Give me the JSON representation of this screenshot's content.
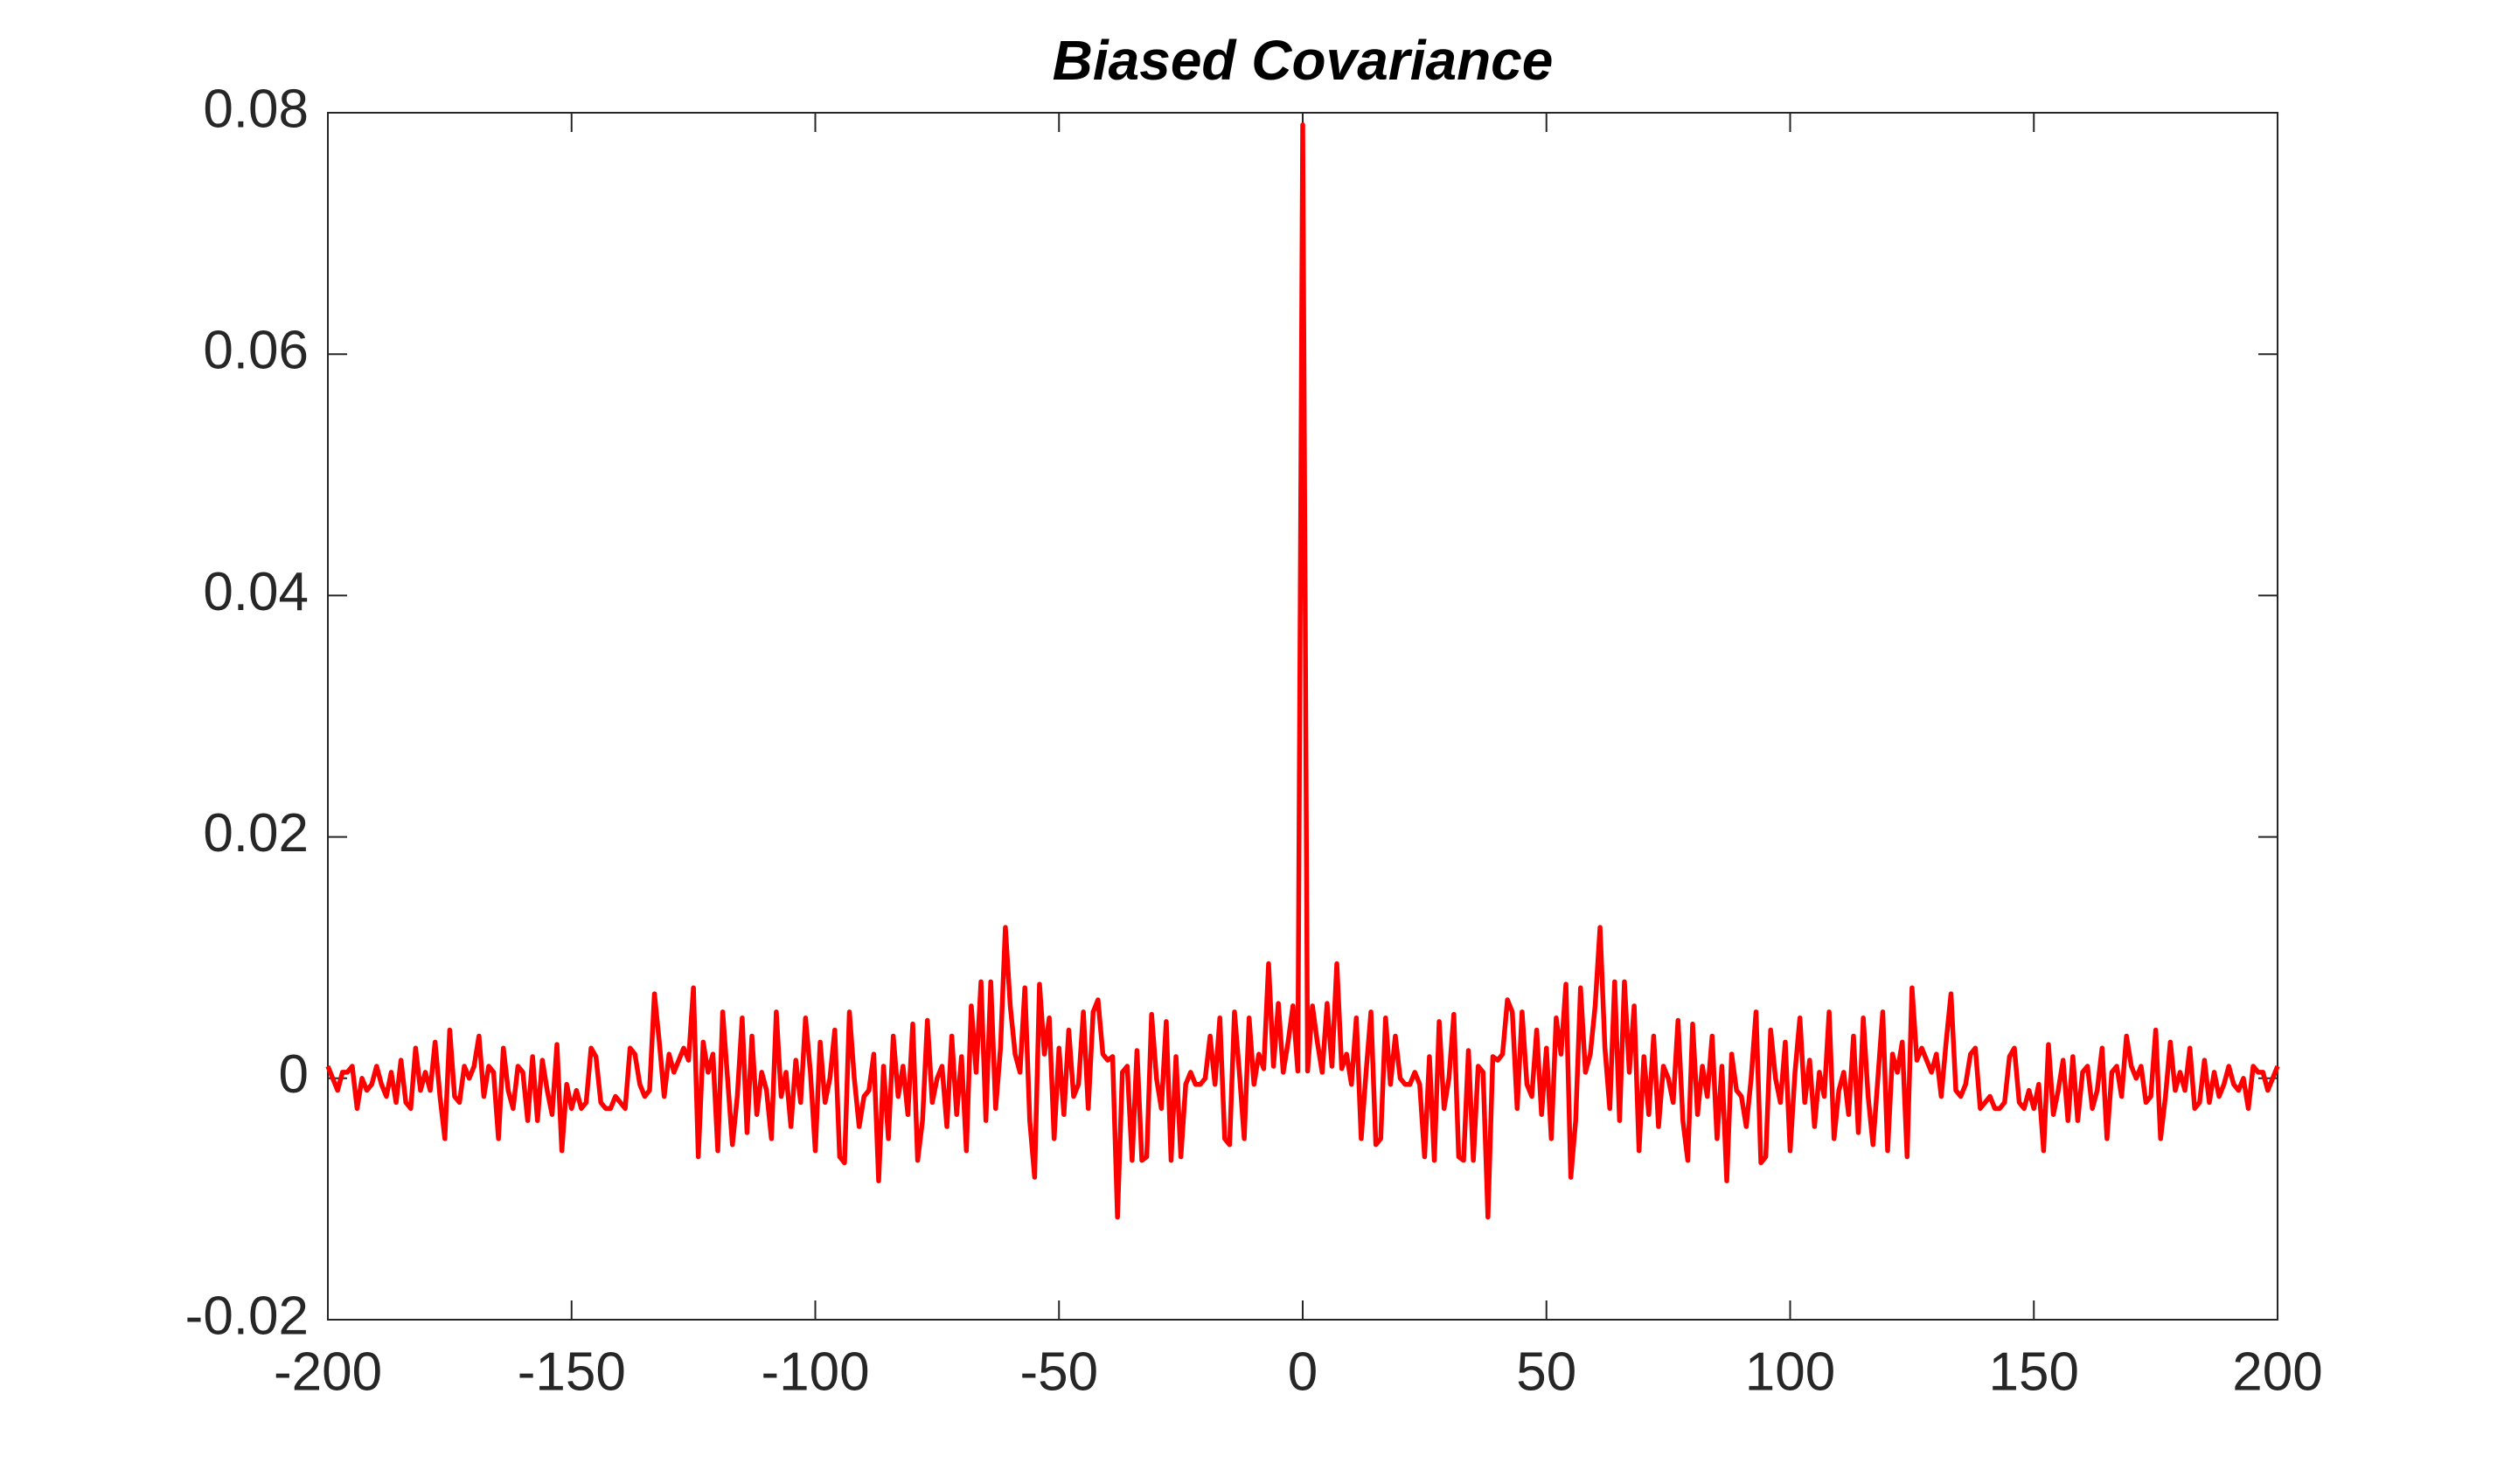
{
  "chart_data": {
    "type": "line",
    "title": "Biased Covariance",
    "x": [
      -200,
      -199,
      -198,
      -197,
      -196,
      -195,
      -194,
      -193,
      -192,
      -191,
      -190,
      -189,
      -188,
      -187,
      -186,
      -185,
      -184,
      -183,
      -182,
      -181,
      -180,
      -179,
      -178,
      -177,
      -176,
      -175,
      -174,
      -173,
      -172,
      -171,
      -170,
      -169,
      -168,
      -167,
      -166,
      -165,
      -164,
      -163,
      -162,
      -161,
      -160,
      -159,
      -158,
      -157,
      -156,
      -155,
      -154,
      -153,
      -152,
      -151,
      -150,
      -149,
      -148,
      -147,
      -146,
      -145,
      -144,
      -143,
      -142,
      -141,
      -140,
      -139,
      -138,
      -137,
      -136,
      -135,
      -134,
      -133,
      -132,
      -131,
      -130,
      -129,
      -128,
      -127,
      -126,
      -125,
      -124,
      -123,
      -122,
      -121,
      -120,
      -119,
      -118,
      -117,
      -116,
      -115,
      -114,
      -113,
      -112,
      -111,
      -110,
      -109,
      -108,
      -107,
      -106,
      -105,
      -104,
      -103,
      -102,
      -101,
      -100,
      -99,
      -98,
      -97,
      -96,
      -95,
      -94,
      -93,
      -92,
      -91,
      -90,
      -89,
      -88,
      -87,
      -86,
      -85,
      -84,
      -83,
      -82,
      -81,
      -80,
      -79,
      -78,
      -77,
      -76,
      -75,
      -74,
      -73,
      -72,
      -71,
      -70,
      -69,
      -68,
      -67,
      -66,
      -65,
      -64,
      -63,
      -62,
      -61,
      -60,
      -59,
      -58,
      -57,
      -56,
      -55,
      -54,
      -53,
      -52,
      -51,
      -50,
      -49,
      -48,
      -47,
      -46,
      -45,
      -44,
      -43,
      -42,
      -41,
      -40,
      -39,
      -38,
      -37,
      -36,
      -35,
      -34,
      -33,
      -32,
      -31,
      -30,
      -29,
      -28,
      -27,
      -26,
      -25,
      -24,
      -23,
      -22,
      -21,
      -20,
      -19,
      -18,
      -17,
      -16,
      -15,
      -14,
      -13,
      -12,
      -11,
      -10,
      -9,
      -8,
      -7,
      -6,
      -5,
      -4,
      -3,
      -2,
      -1,
      0,
      1,
      2,
      3,
      4,
      5,
      6,
      7,
      8,
      9,
      10,
      11,
      12,
      13,
      14,
      15,
      16,
      17,
      18,
      19,
      20,
      21,
      22,
      23,
      24,
      25,
      26,
      27,
      28,
      29,
      30,
      31,
      32,
      33,
      34,
      35,
      36,
      37,
      38,
      39,
      40,
      41,
      42,
      43,
      44,
      45,
      46,
      47,
      48,
      49,
      50,
      51,
      52,
      53,
      54,
      55,
      56,
      57,
      58,
      59,
      60,
      61,
      62,
      63,
      64,
      65,
      66,
      67,
      68,
      69,
      70,
      71,
      72,
      73,
      74,
      75,
      76,
      77,
      78,
      79,
      80,
      81,
      82,
      83,
      84,
      85,
      86,
      87,
      88,
      89,
      90,
      91,
      92,
      93,
      94,
      95,
      96,
      97,
      98,
      99,
      100,
      101,
      102,
      103,
      104,
      105,
      106,
      107,
      108,
      109,
      110,
      111,
      112,
      113,
      114,
      115,
      116,
      117,
      118,
      119,
      120,
      121,
      122,
      123,
      124,
      125,
      126,
      127,
      128,
      129,
      130,
      131,
      132,
      133,
      134,
      135,
      136,
      137,
      138,
      139,
      140,
      141,
      142,
      143,
      144,
      145,
      146,
      147,
      148,
      149,
      150,
      151,
      152,
      153,
      154,
      155,
      156,
      157,
      158,
      159,
      160,
      161,
      162,
      163,
      164,
      165,
      166,
      167,
      168,
      169,
      170,
      171,
      172,
      173,
      174,
      175,
      176,
      177,
      178,
      179,
      180,
      181,
      182,
      183,
      184,
      185,
      186,
      187,
      188,
      189,
      190,
      191,
      192,
      193,
      194,
      195,
      196,
      197,
      198,
      199,
      200
    ],
    "series": [
      {
        "color": "#ff0000",
        "values": [
          0.001,
          0,
          -0.001,
          0.0005,
          0.0005,
          0.001,
          -0.0025,
          0,
          -0.001,
          -0.0005,
          0.001,
          -0.0005,
          -0.0015,
          0.0005,
          -0.002,
          0.0015,
          -0.002,
          -0.0025,
          0.0025,
          -0.001,
          0.0005,
          -0.001,
          0.003,
          -0.0015,
          -0.005,
          0.004,
          -0.0015,
          -0.002,
          0.001,
          0,
          0.001,
          0.0035,
          -0.0015,
          0.001,
          0.0005,
          -0.005,
          0.0025,
          -0.001,
          -0.0025,
          0.001,
          0.0005,
          -0.0035,
          0.0018,
          -0.0035,
          0.0015,
          -0.001,
          -0.003,
          0.0028,
          -0.006,
          -0.0005,
          -0.0025,
          -0.001,
          -0.0025,
          -0.002,
          0.0025,
          0.0018,
          -0.002,
          -0.0025,
          -0.0025,
          -0.0015,
          -0.002,
          -0.0025,
          0.0025,
          0.002,
          -0.0005,
          -0.0015,
          -0.001,
          0.007,
          0.003,
          -0.0015,
          0.002,
          0.0005,
          0.0015,
          0.0025,
          0.0015,
          0.0075,
          -0.0065,
          0.003,
          0.0005,
          0.002,
          -0.006,
          0.0055,
          0,
          -0.0055,
          -0.0015,
          0.005,
          -0.0045,
          0.0035,
          -0.003,
          0.0005,
          -0.001,
          -0.005,
          0.0055,
          -0.0015,
          0.0005,
          -0.004,
          0.0015,
          -0.002,
          0.005,
          0.0005,
          -0.006,
          0.003,
          -0.002,
          0,
          0.004,
          -0.0065,
          -0.007,
          0.0055,
          0,
          -0.004,
          -0.0015,
          -0.001,
          0.002,
          -0.0085,
          0.001,
          -0.005,
          0.0035,
          -0.0015,
          0.001,
          -0.003,
          0.0045,
          -0.0068,
          -0.0035,
          0.0048,
          -0.002,
          0,
          0.001,
          -0.004,
          0.0035,
          -0.003,
          0.0018,
          -0.006,
          0.006,
          0.0005,
          0.008,
          -0.0035,
          0.008,
          -0.0025,
          0.0025,
          0.0125,
          0.006,
          0.002,
          0.0005,
          0.0075,
          -0.0035,
          -0.0082,
          0.0078,
          0.002,
          0.005,
          -0.005,
          0.0025,
          -0.003,
          0.004,
          -0.0015,
          -0.0005,
          0.0055,
          -0.0025,
          0.0055,
          0.0065,
          0.002,
          0.0015,
          0.0018,
          -0.0115,
          0.0005,
          0.001,
          -0.0068,
          0.0023,
          -0.0068,
          -0.0065,
          0.0053,
          0,
          -0.0025,
          0.0047,
          -0.0068,
          0.0018,
          -0.0065,
          -0.0005,
          0.0005,
          -0.0005,
          -0.0005,
          0,
          0.0035,
          -0.0005,
          0.005,
          -0.005,
          -0.0055,
          0.0055,
          0.0005,
          -0.005,
          0.005,
          -0.0005,
          0.002,
          0.0008,
          0.0095,
          0.001,
          0.0062,
          0.0005,
          0.003,
          0.006,
          0.0006,
          0.079,
          0.0006,
          0.006,
          0.003,
          0.0005,
          0.0062,
          0.001,
          0.0095,
          0.0008,
          0.002,
          -0.0005,
          0.005,
          -0.005,
          0.0005,
          0.0055,
          -0.0055,
          -0.005,
          0.005,
          -0.0005,
          0.0035,
          0,
          -0.0005,
          -0.0005,
          0.0005,
          -0.0005,
          -0.0065,
          0.0018,
          -0.0068,
          0.0047,
          -0.0025,
          0,
          0.0053,
          -0.0065,
          -0.0068,
          0.0023,
          -0.0068,
          0.001,
          0.0005,
          -0.0115,
          0.0018,
          0.0015,
          0.002,
          0.0065,
          0.0055,
          -0.0025,
          0.0055,
          -0.0005,
          -0.0015,
          0.004,
          -0.003,
          0.0025,
          -0.005,
          0.005,
          0.002,
          0.0078,
          -0.0082,
          -0.0035,
          0.0075,
          0.0005,
          0.002,
          0.006,
          0.0125,
          0.0025,
          -0.0025,
          0.008,
          -0.0035,
          0.008,
          0.0005,
          0.006,
          -0.006,
          0.0018,
          -0.003,
          0.0035,
          -0.004,
          0.001,
          0,
          -0.002,
          0.0048,
          -0.0035,
          -0.0068,
          0.0045,
          -0.003,
          0.001,
          -0.0015,
          0.0035,
          -0.005,
          0.001,
          -0.0085,
          0.002,
          -0.001,
          -0.0015,
          -0.004,
          0,
          0.0055,
          -0.007,
          -0.0065,
          0.004,
          0,
          -0.002,
          0.003,
          -0.006,
          0.0005,
          0.005,
          -0.002,
          0.0015,
          -0.004,
          0.0005,
          -0.0015,
          0.0055,
          -0.005,
          -0.001,
          0.0005,
          -0.003,
          0.0035,
          -0.0045,
          0.005,
          -0.0015,
          -0.0055,
          0,
          0.0055,
          -0.006,
          0.002,
          0.0005,
          0.003,
          -0.0065,
          0.0075,
          0.0015,
          0.0025,
          0.0015,
          0.0005,
          0.002,
          -0.0015,
          0.003,
          0.007,
          -0.001,
          -0.0015,
          -0.0005,
          0.002,
          0.0025,
          -0.0025,
          -0.002,
          -0.0015,
          -0.0025,
          -0.0025,
          -0.002,
          0.0018,
          0.0025,
          -0.002,
          -0.0025,
          -0.001,
          -0.0025,
          -0.0005,
          -0.006,
          0.0028,
          -0.003,
          -0.001,
          0.0015,
          -0.0035,
          0.0018,
          -0.0035,
          0.0005,
          0.001,
          -0.0025,
          -0.001,
          0.0025,
          -0.005,
          0.0005,
          0.001,
          -0.0015,
          0.0035,
          0.001,
          0,
          0.001,
          -0.002,
          -0.0015,
          0.004,
          -0.005,
          -0.0015,
          0.003,
          -0.001,
          0.0005,
          -0.001,
          0.0025,
          -0.0025,
          -0.002,
          0.0015,
          -0.002,
          0.0005,
          -0.0015,
          -0.0005,
          0.001,
          -0.0005,
          -0.001,
          0,
          -0.0025,
          0.001,
          0.0005,
          0.0005,
          -0.001,
          0,
          0.001
        ]
      }
    ],
    "xlim": [
      -200,
      200
    ],
    "xticks": [
      -200,
      -150,
      -100,
      -50,
      0,
      50,
      100,
      150,
      200
    ],
    "ylim": [
      -0.02,
      0.08
    ],
    "yticks": [
      -0.02,
      0,
      0.02,
      0.04,
      0.06,
      0.08
    ]
  }
}
